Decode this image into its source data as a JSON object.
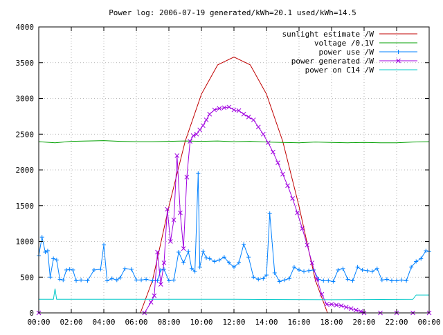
{
  "chart_data": {
    "type": "line",
    "title": "Power log: 2006-07-19 generated/kWh=20.1 used/kWh=14.5",
    "xlabel": "",
    "ylabel": "",
    "x_range_hours": [
      0,
      24
    ],
    "ylim": [
      0,
      4000
    ],
    "x_tick_labels": [
      "00:00",
      "02:00",
      "04:00",
      "06:00",
      "08:00",
      "10:00",
      "12:00",
      "14:00",
      "16:00",
      "18:00",
      "20:00",
      "22:00",
      "00:00"
    ],
    "y_ticks": [
      0,
      500,
      1000,
      1500,
      2000,
      2500,
      3000,
      3500,
      4000
    ],
    "grid": true,
    "legend_position": "top-right",
    "series": [
      {
        "name": "sunlight estimate /W",
        "color": "#c00000",
        "style": "line",
        "x": [
          6.25,
          7,
          8,
          9,
          10,
          11,
          12,
          13,
          14,
          15,
          16,
          17,
          17.75
        ],
        "y": [
          0,
          460,
          1490,
          2400,
          3060,
          3470,
          3580,
          3470,
          3060,
          2400,
          1490,
          460,
          0
        ]
      },
      {
        "name": "voltage /0.1V",
        "color": "#00a000",
        "style": "line",
        "x": [
          0,
          1,
          2,
          3,
          4,
          5,
          6,
          7,
          8,
          9,
          10,
          11,
          12,
          13,
          14,
          15,
          16,
          17,
          18,
          19,
          20,
          21,
          22,
          23,
          24
        ],
        "y": [
          2395,
          2380,
          2400,
          2405,
          2410,
          2400,
          2395,
          2395,
          2400,
          2405,
          2400,
          2405,
          2395,
          2400,
          2390,
          2385,
          2380,
          2390,
          2385,
          2380,
          2385,
          2380,
          2380,
          2390,
          2395
        ]
      },
      {
        "name": "power use /W",
        "color": "#0080ff",
        "style": "linespoints",
        "x": [
          0,
          0.2,
          0.4,
          0.55,
          0.7,
          0.9,
          1.1,
          1.3,
          1.5,
          1.7,
          1.9,
          2.1,
          2.3,
          2.6,
          3.0,
          3.4,
          3.8,
          4.0,
          4.2,
          4.5,
          4.8,
          5.0,
          5.3,
          5.7,
          6.0,
          6.3,
          6.6,
          7.0,
          7.3,
          7.5,
          7.7,
          8.0,
          8.3,
          8.6,
          8.9,
          9.2,
          9.4,
          9.6,
          9.8,
          9.9,
          10.1,
          10.3,
          10.5,
          10.8,
          11.1,
          11.4,
          11.7,
          12.0,
          12.3,
          12.6,
          12.9,
          13.2,
          13.5,
          13.8,
          14.0,
          14.2,
          14.5,
          14.8,
          15.1,
          15.4,
          15.7,
          16.0,
          16.3,
          16.6,
          16.9,
          17.2,
          17.5,
          17.8,
          18.1,
          18.4,
          18.7,
          19.0,
          19.3,
          19.6,
          19.9,
          20.2,
          20.5,
          20.8,
          21.1,
          21.4,
          21.7,
          22.0,
          22.3,
          22.6,
          22.9,
          23.2,
          23.5,
          23.8,
          24.0
        ],
        "y": [
          800,
          1060,
          850,
          870,
          500,
          760,
          740,
          470,
          460,
          600,
          610,
          600,
          450,
          460,
          450,
          600,
          610,
          950,
          450,
          480,
          460,
          490,
          620,
          610,
          460,
          460,
          470,
          450,
          450,
          600,
          610,
          450,
          460,
          850,
          700,
          860,
          620,
          580,
          1950,
          640,
          860,
          770,
          760,
          720,
          740,
          780,
          700,
          640,
          700,
          960,
          780,
          500,
          470,
          480,
          530,
          1390,
          560,
          440,
          460,
          480,
          640,
          600,
          580,
          590,
          600,
          470,
          450,
          450,
          440,
          600,
          620,
          470,
          450,
          640,
          600,
          590,
          580,
          620,
          460,
          470,
          450,
          450,
          460,
          450,
          640,
          720,
          760,
          870,
          860
        ]
      },
      {
        "name": "power generated /W",
        "color": "#a000e0",
        "style": "linespoints",
        "x": [
          0,
          6.5,
          6.9,
          7.1,
          7.3,
          7.5,
          7.7,
          7.9,
          8.1,
          8.3,
          8.5,
          8.7,
          8.9,
          9.1,
          9.3,
          9.5,
          9.7,
          9.9,
          10.1,
          10.3,
          10.5,
          10.8,
          11.1,
          11.4,
          11.7,
          12.0,
          12.3,
          12.6,
          12.9,
          13.2,
          13.5,
          13.8,
          14.1,
          14.4,
          14.7,
          15.0,
          15.3,
          15.6,
          15.9,
          16.2,
          16.5,
          16.8,
          17.1,
          17.4,
          17.7,
          18.0,
          18.3,
          18.6,
          18.9,
          19.2,
          19.5,
          19.8,
          20.0,
          21.0,
          22.0,
          23.0,
          24.0
        ],
        "y": [
          0,
          0,
          150,
          240,
          850,
          400,
          700,
          1450,
          1000,
          1300,
          2200,
          1400,
          900,
          1900,
          2400,
          2480,
          2500,
          2560,
          2620,
          2700,
          2780,
          2840,
          2860,
          2870,
          2880,
          2840,
          2830,
          2780,
          2740,
          2700,
          2600,
          2500,
          2380,
          2250,
          2100,
          1940,
          1780,
          1600,
          1400,
          1180,
          950,
          700,
          470,
          260,
          120,
          120,
          110,
          100,
          80,
          60,
          40,
          20,
          0,
          0,
          0,
          0,
          0
        ]
      },
      {
        "name": "power on C14 /W",
        "color": "#00c8c8",
        "style": "line",
        "x": [
          0,
          0.9,
          1.0,
          1.1,
          1.2,
          6.0,
          12.0,
          18.0,
          23.0,
          23.2,
          24.0
        ],
        "y": [
          190,
          190,
          340,
          190,
          190,
          190,
          190,
          185,
          190,
          250,
          250
        ]
      }
    ]
  }
}
